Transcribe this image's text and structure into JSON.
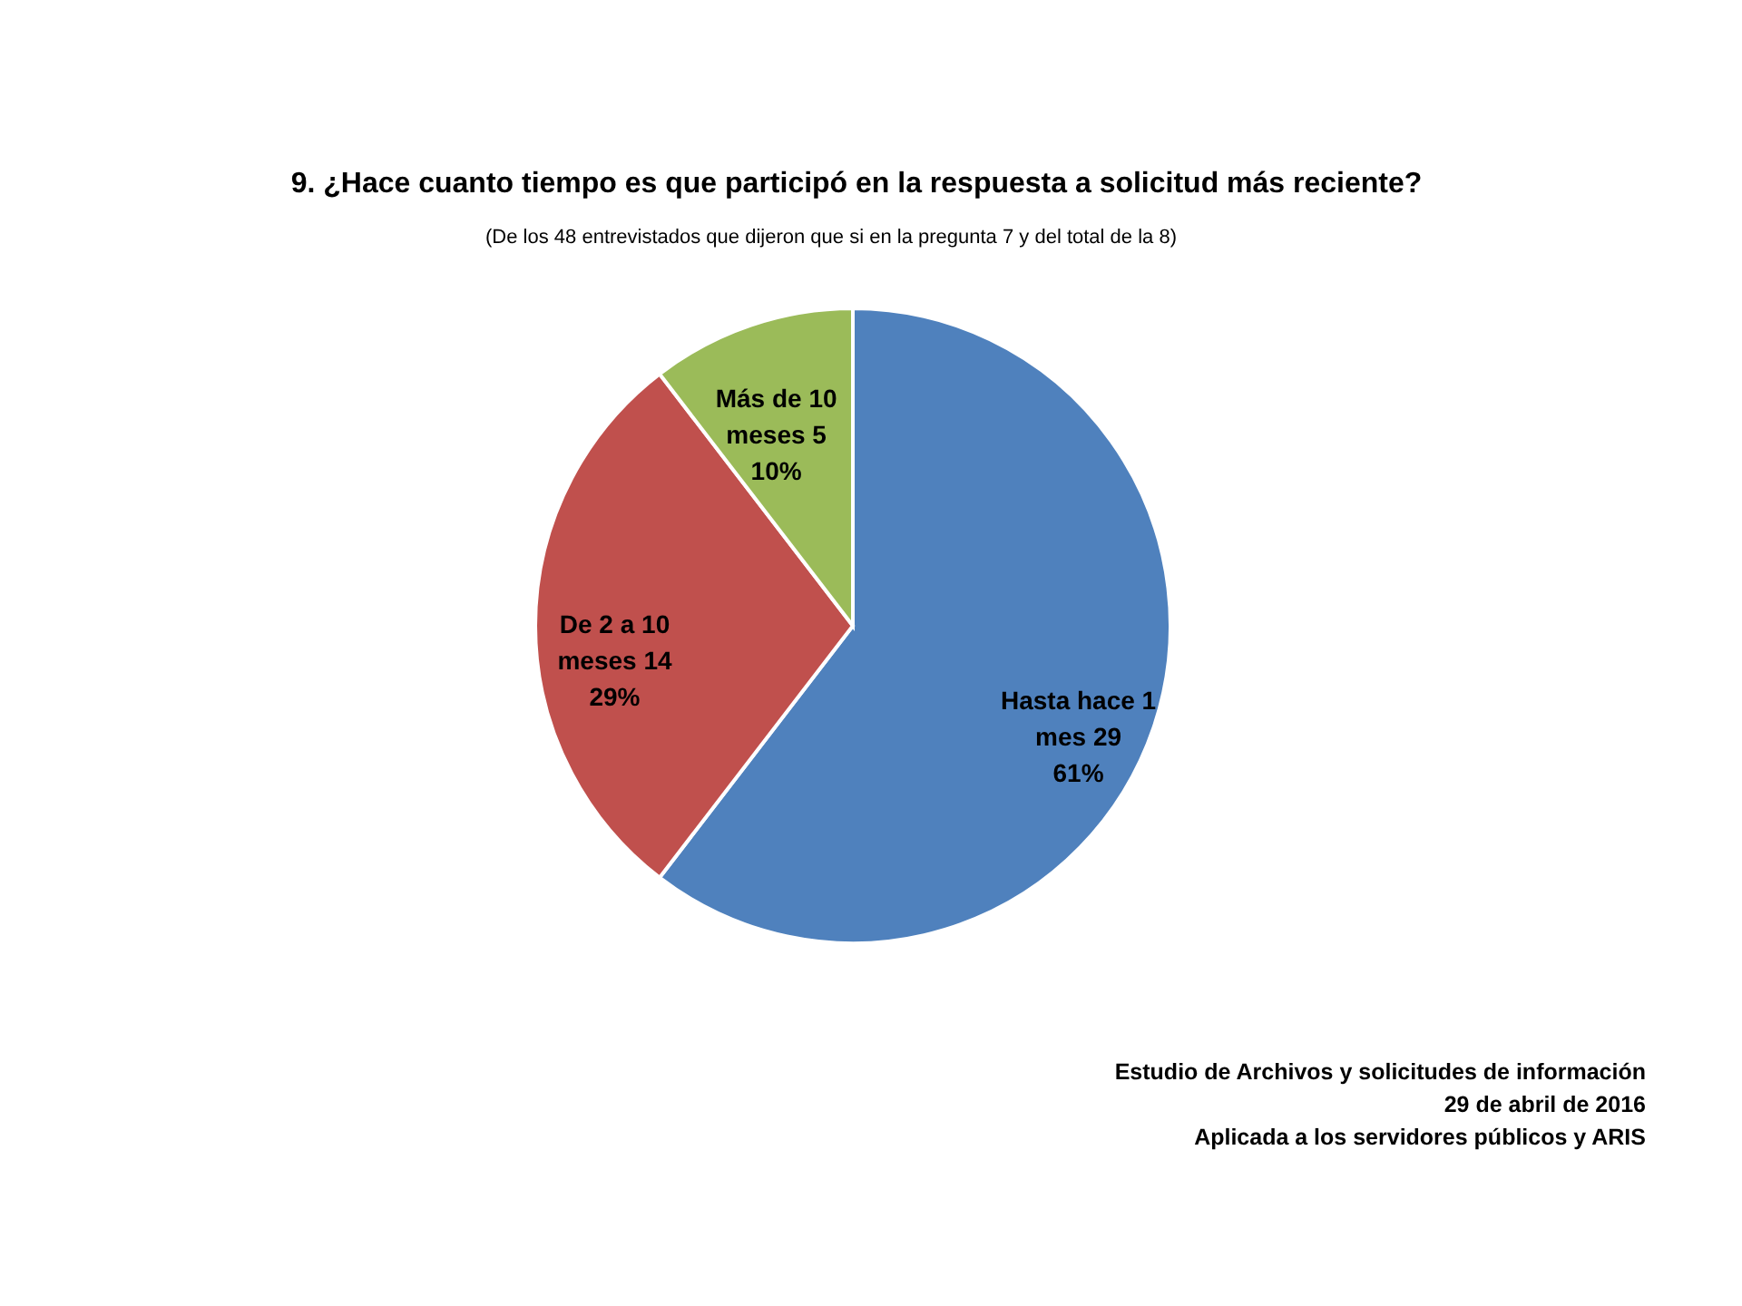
{
  "chart_data": {
    "type": "pie",
    "title": "9. ¿Hace cuanto tiempo es que participó en la respuesta a solicitud más reciente?",
    "subtitle": "(De los 48 entrevistados que dijeron que si en la pregunta 7 y del total de la 8)",
    "categories": [
      "Hasta hace 1 mes",
      "De 2 a 10 meses",
      "Más de 10 meses"
    ],
    "values": [
      29,
      14,
      5
    ],
    "colors": [
      "#4f81bd",
      "#c0504d",
      "#9bbb59"
    ],
    "value_labels": [
      "29\n61%",
      "14\n29%",
      "5\n10%"
    ],
    "annotations": [
      "Estudio de Archivos y solicitudes de información",
      "29 de abril de 2016",
      "Aplicada a los servidores públicos y ARIS"
    ]
  }
}
